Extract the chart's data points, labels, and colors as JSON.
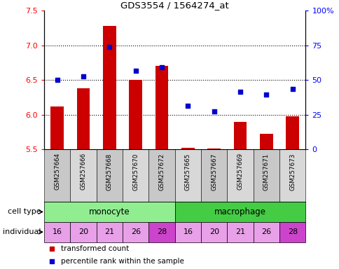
{
  "title": "GDS3554 / 1564274_at",
  "samples": [
    "GSM257664",
    "GSM257666",
    "GSM257668",
    "GSM257670",
    "GSM257672",
    "GSM257665",
    "GSM257667",
    "GSM257669",
    "GSM257671",
    "GSM257673"
  ],
  "bar_values": [
    6.12,
    6.38,
    7.28,
    6.5,
    6.7,
    5.52,
    5.51,
    5.9,
    5.72,
    5.98
  ],
  "scatter_values": [
    6.5,
    6.55,
    6.98,
    6.63,
    6.68,
    6.13,
    6.05,
    6.33,
    6.29,
    6.37
  ],
  "ylim_left": [
    5.5,
    7.5
  ],
  "ylim_right": [
    0,
    100
  ],
  "yticks_left": [
    5.5,
    6.0,
    6.5,
    7.0,
    7.5
  ],
  "yticks_right": [
    0,
    25,
    50,
    75,
    100
  ],
  "ytick_labels_right": [
    "0",
    "25",
    "50",
    "75",
    "100%"
  ],
  "dotted_lines": [
    6.0,
    6.5,
    7.0
  ],
  "individuals": [
    "16",
    "20",
    "21",
    "26",
    "28",
    "16",
    "20",
    "21",
    "26",
    "28"
  ],
  "monocyte_color": "#90ee90",
  "macrophage_color": "#44cc44",
  "bar_color": "#cc0000",
  "scatter_color": "#0000cc",
  "bar_bottom": 5.5,
  "ind_color_light": "#e8a0e8",
  "ind_color_dark": "#cc44cc",
  "dark_individuals": [
    "28"
  ],
  "xlabel_bg_even": "#c8c8c8",
  "xlabel_bg_odd": "#d8d8d8"
}
